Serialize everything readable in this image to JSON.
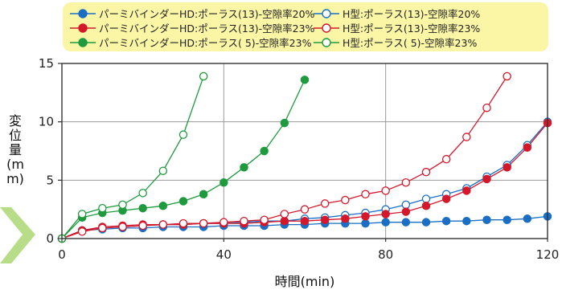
{
  "chart_data": {
    "type": "line",
    "xlabel": "時間(min)",
    "ylabel": "変位量(mm)",
    "xlim": [
      0,
      120
    ],
    "ylim": [
      0,
      15
    ],
    "xticks": [
      "0",
      "40",
      "80",
      "120"
    ],
    "yticks": [
      "0",
      "5",
      "10",
      "15"
    ],
    "grid": true,
    "legend_position": "top",
    "series": [
      {
        "name": "パーミバインダーHD:ポーラス(13)-空隙率20%",
        "color": "#1a6fc4",
        "marker": "filled",
        "x": [
          0,
          5,
          10,
          15,
          20,
          25,
          30,
          35,
          40,
          45,
          50,
          55,
          60,
          65,
          70,
          75,
          80,
          85,
          90,
          95,
          100,
          105,
          110,
          115,
          120
        ],
        "y": [
          0,
          0.7,
          0.8,
          0.9,
          0.9,
          1.0,
          1.0,
          1.0,
          1.1,
          1.1,
          1.1,
          1.2,
          1.2,
          1.3,
          1.3,
          1.3,
          1.4,
          1.4,
          1.4,
          1.5,
          1.5,
          1.6,
          1.6,
          1.7,
          1.9
        ]
      },
      {
        "name": "H型:ポーラス(13)-空隙率20%",
        "color": "#1a6fc4",
        "marker": "open",
        "x": [
          0,
          5,
          10,
          15,
          20,
          25,
          30,
          35,
          40,
          45,
          50,
          55,
          60,
          65,
          70,
          75,
          80,
          85,
          90,
          95,
          100,
          105,
          110,
          115,
          120
        ],
        "y": [
          0,
          0.7,
          0.9,
          1.0,
          1.1,
          1.2,
          1.2,
          1.3,
          1.3,
          1.4,
          1.5,
          1.5,
          1.7,
          1.8,
          2.0,
          2.2,
          2.5,
          2.9,
          3.4,
          3.8,
          4.3,
          5.3,
          6.3,
          8.0,
          10.0
        ]
      },
      {
        "name": "パーミバインダーHD:ポーラス(13)-空隙率23%",
        "color": "#d4182b",
        "marker": "filled",
        "x": [
          0,
          5,
          10,
          15,
          20,
          25,
          30,
          35,
          40,
          45,
          50,
          55,
          60,
          65,
          70,
          75,
          80,
          85,
          90,
          95,
          100,
          105,
          110,
          115,
          120
        ],
        "y": [
          0,
          0.7,
          1.0,
          1.1,
          1.2,
          1.2,
          1.2,
          1.3,
          1.3,
          1.3,
          1.4,
          1.5,
          1.5,
          1.6,
          1.7,
          1.9,
          2.1,
          2.3,
          2.8,
          3.4,
          4.1,
          5.1,
          6.1,
          7.8,
          9.9
        ]
      },
      {
        "name": "H型:ポーラス(13)-空隙率23%",
        "color": "#d4182b",
        "marker": "open",
        "x": [
          0,
          5,
          10,
          15,
          20,
          25,
          30,
          35,
          40,
          45,
          50,
          55,
          60,
          65,
          70,
          75,
          80,
          85,
          90,
          95,
          100,
          105,
          110
        ],
        "y": [
          0,
          0.6,
          0.9,
          1.0,
          1.1,
          1.2,
          1.3,
          1.3,
          1.4,
          1.5,
          1.6,
          2.1,
          2.5,
          3.0,
          3.3,
          3.8,
          4.1,
          4.8,
          5.7,
          6.8,
          8.7,
          11.2,
          13.9
        ]
      },
      {
        "name": "パーミバインダーHD:ポーラス( 5)-空隙率23%",
        "color": "#1f9a3e",
        "marker": "filled",
        "x": [
          0,
          5,
          10,
          15,
          20,
          25,
          30,
          35,
          40,
          45,
          50,
          55,
          60
        ],
        "y": [
          0,
          1.8,
          2.2,
          2.4,
          2.6,
          2.8,
          3.2,
          3.8,
          4.8,
          6.1,
          7.5,
          9.9,
          13.6
        ]
      },
      {
        "name": "H型:ポーラス( 5)-空隙率23%",
        "color": "#1f9a3e",
        "marker": "open",
        "x": [
          0,
          5,
          10,
          15,
          20,
          25,
          30,
          35
        ],
        "y": [
          0,
          2.1,
          2.6,
          2.9,
          3.9,
          5.8,
          8.9,
          13.9
        ]
      }
    ]
  }
}
